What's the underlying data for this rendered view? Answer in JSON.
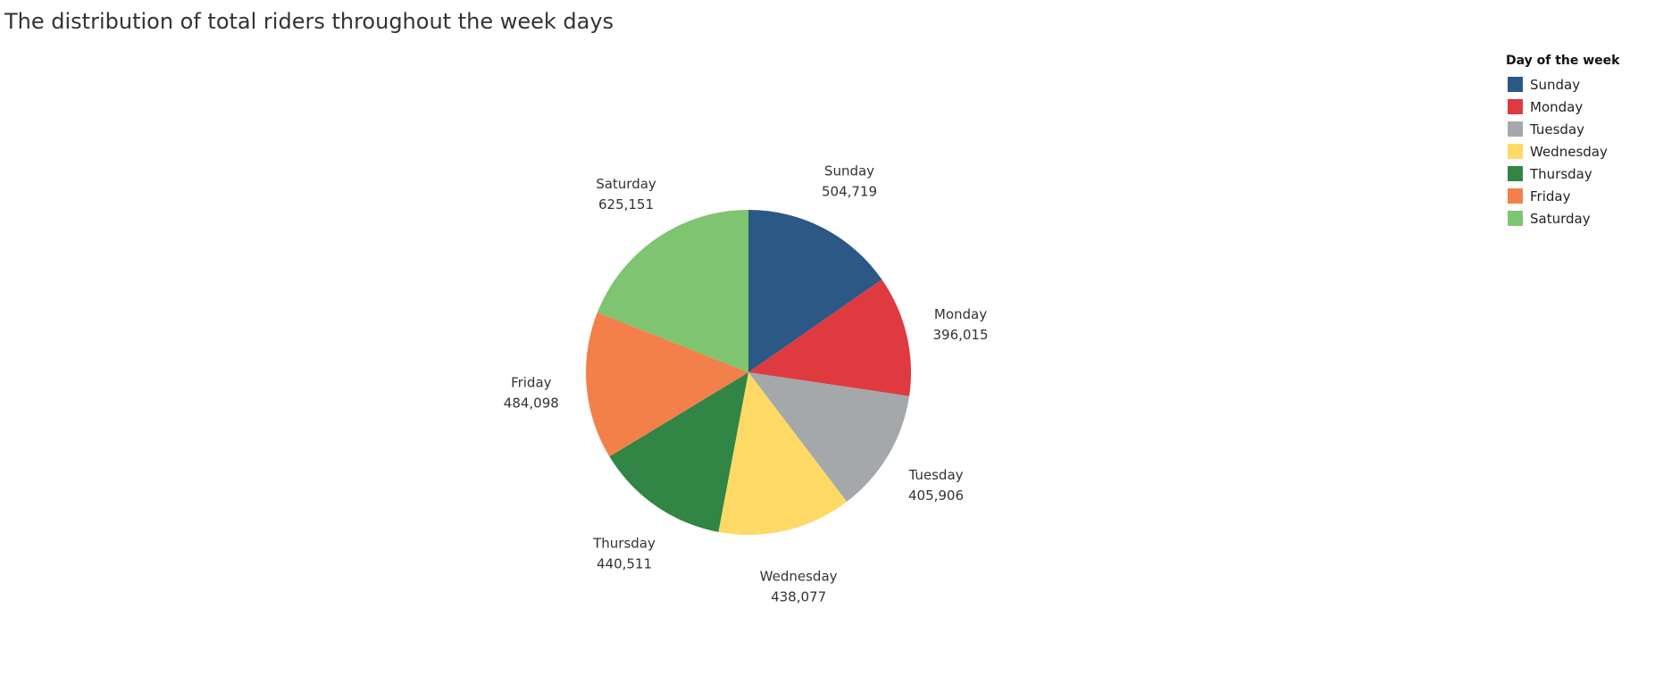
{
  "title": "The distribution of total riders throughout the week days",
  "legend": {
    "title": "Day of the week",
    "items": [
      {
        "label": "Sunday",
        "color": "#2B5885"
      },
      {
        "label": "Monday",
        "color": "#E03A41"
      },
      {
        "label": "Tuesday",
        "color": "#A4A8AA"
      },
      {
        "label": "Wednesday",
        "color": "#FFD966"
      },
      {
        "label": "Thursday",
        "color": "#318545"
      },
      {
        "label": "Friday",
        "color": "#F3804A"
      },
      {
        "label": "Saturday",
        "color": "#7FC470"
      }
    ]
  },
  "chart_data": {
    "type": "pie",
    "title": "The distribution of total riders throughout the week days",
    "legend_title": "Day of the week",
    "legend_position": "top-right",
    "categories": [
      "Sunday",
      "Monday",
      "Tuesday",
      "Wednesday",
      "Thursday",
      "Friday",
      "Saturday"
    ],
    "values": [
      504719,
      396015,
      405906,
      438077,
      440511,
      484098,
      625151
    ],
    "value_labels": [
      "504,719",
      "396,015",
      "405,906",
      "438,077",
      "440,511",
      "484,098",
      "625,151"
    ],
    "colors": [
      "#2B5885",
      "#E03A41",
      "#A4A8AA",
      "#FFD966",
      "#318545",
      "#F3804A",
      "#7FC470"
    ],
    "start": "12 o'clock",
    "direction": "clockwise"
  }
}
